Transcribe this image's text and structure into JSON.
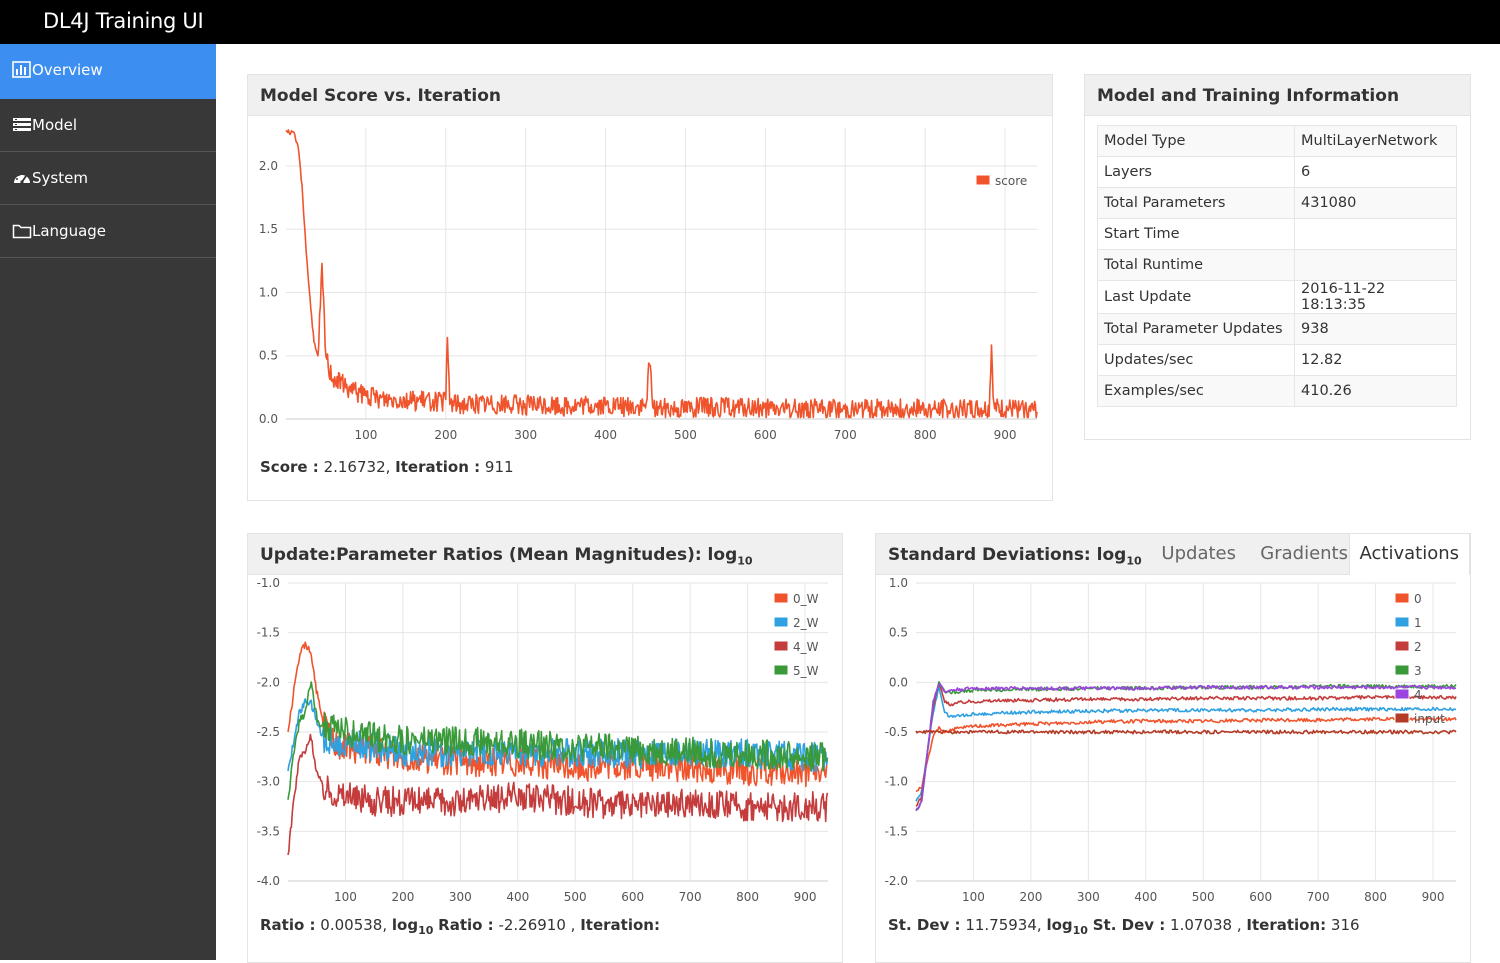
{
  "app": {
    "title": "DL4J Training UI"
  },
  "sidebar": {
    "items": [
      {
        "label": "Overview",
        "icon": "bar-chart-icon",
        "active": true
      },
      {
        "label": "Model",
        "icon": "list-icon",
        "active": false
      },
      {
        "label": "System",
        "icon": "dashboard-icon",
        "active": false
      },
      {
        "label": "Language",
        "icon": "folder-icon",
        "active": false
      }
    ]
  },
  "colors": {
    "accent": "#3c8ff0",
    "series": [
      "#f0542d",
      "#2fa0e0",
      "#c43c3c",
      "#3a9a3a",
      "#9b44e0",
      "#b43b26"
    ]
  },
  "score_panel": {
    "title": "Model Score vs. Iteration",
    "readout": {
      "score_label": "Score :",
      "score_value": "2.16732,",
      "iter_label": "Iteration :",
      "iter_value": "911"
    }
  },
  "info_panel": {
    "title": "Model and Training Information",
    "rows": [
      {
        "key": "Model Type",
        "value": "MultiLayerNetwork"
      },
      {
        "key": "Layers",
        "value": "6"
      },
      {
        "key": "Total Parameters",
        "value": "431080"
      },
      {
        "key": "Start Time",
        "value": ""
      },
      {
        "key": "Total Runtime",
        "value": ""
      },
      {
        "key": "Last Update",
        "value": "2016-11-22 18:13:35"
      },
      {
        "key": "Total Parameter Updates",
        "value": "938"
      },
      {
        "key": "Updates/sec",
        "value": "12.82"
      },
      {
        "key": "Examples/sec",
        "value": "410.26"
      }
    ]
  },
  "ratio_panel": {
    "title": "Update:Parameter Ratios (Mean Magnitudes): log",
    "title_sub": "10",
    "readout": {
      "ratio_label": "Ratio :",
      "ratio_value": "0.00538,",
      "log_label": "log",
      "log_sub": "10",
      "log_ratio_label": "Ratio :",
      "log_ratio_value": "-2.26910 ,",
      "iter_label": "Iteration:",
      "iter_value": ""
    }
  },
  "stdev_panel": {
    "title": "Standard Deviations: log",
    "title_sub": "10",
    "tabs": [
      {
        "label": "Updates",
        "active": false
      },
      {
        "label": "Gradients",
        "active": false
      },
      {
        "label": "Activations",
        "active": true
      }
    ],
    "readout": {
      "sd_label": "St. Dev :",
      "sd_value": "11.75934,",
      "log_label": "log",
      "log_sub": "10",
      "log_sd_label": "St. Dev :",
      "log_sd_value": "1.07038 ,",
      "iter_label": "Iteration:",
      "iter_value": "316"
    }
  },
  "chart_data": [
    {
      "type": "line",
      "title": "Model Score vs. Iteration",
      "xlim": [
        0,
        940
      ],
      "ylim": [
        0,
        2.3
      ],
      "xticks": [
        100,
        200,
        300,
        400,
        500,
        600,
        700,
        800,
        900
      ],
      "yticks": [
        0.0,
        0.5,
        1.0,
        1.5,
        2.0
      ],
      "ytick_labels": [
        "0.0",
        "0.5",
        "1.0",
        "1.5",
        "2.0"
      ],
      "grid": true,
      "legend_position": "top-right",
      "series": [
        {
          "name": "score",
          "color": "#f0542d",
          "x": [
            0,
            10,
            15,
            20,
            25,
            30,
            35,
            40,
            45,
            50,
            55,
            60,
            70,
            80,
            90,
            100,
            120,
            140,
            160,
            180,
            200,
            202,
            205,
            220,
            250,
            300,
            350,
            400,
            450,
            455,
            460,
            500,
            550,
            600,
            650,
            700,
            750,
            800,
            850,
            880,
            883,
            886,
            900,
            920,
            940
          ],
          "y": [
            2.28,
            2.25,
            2.15,
            1.85,
            1.35,
            0.95,
            0.6,
            0.48,
            1.18,
            0.5,
            0.38,
            0.33,
            0.28,
            0.24,
            0.2,
            0.18,
            0.16,
            0.16,
            0.14,
            0.14,
            0.13,
            0.65,
            0.13,
            0.12,
            0.12,
            0.11,
            0.1,
            0.1,
            0.09,
            0.45,
            0.09,
            0.09,
            0.09,
            0.08,
            0.08,
            0.08,
            0.08,
            0.08,
            0.08,
            0.08,
            0.58,
            0.08,
            0.08,
            0.07,
            0.07
          ]
        }
      ]
    },
    {
      "type": "line",
      "title": "Update:Parameter Ratios (Mean Magnitudes): log10",
      "xlim": [
        0,
        940
      ],
      "ylim": [
        -4.0,
        -1.0
      ],
      "xticks": [
        100,
        200,
        300,
        400,
        500,
        600,
        700,
        800,
        900
      ],
      "yticks": [
        -4.0,
        -3.5,
        -3.0,
        -2.5,
        -2.0,
        -1.5,
        -1.0
      ],
      "ytick_labels": [
        "-4.0",
        "-3.5",
        "-3.0",
        "-2.5",
        "-2.0",
        "-1.5",
        "-1.0"
      ],
      "grid": true,
      "legend_position": "top-right",
      "series": [
        {
          "name": "0_W",
          "color": "#f0542d",
          "x": [
            0,
            10,
            20,
            30,
            40,
            50,
            60,
            80,
            100,
            150,
            200,
            300,
            400,
            500,
            600,
            700,
            800,
            900,
            940
          ],
          "y": [
            -2.5,
            -2.1,
            -1.75,
            -1.6,
            -1.7,
            -2.1,
            -2.4,
            -2.6,
            -2.65,
            -2.7,
            -2.75,
            -2.8,
            -2.8,
            -2.85,
            -2.85,
            -2.85,
            -2.9,
            -2.9,
            -2.9
          ]
        },
        {
          "name": "2_W",
          "color": "#2fa0e0",
          "x": [
            0,
            10,
            20,
            30,
            40,
            50,
            60,
            80,
            100,
            150,
            200,
            300,
            400,
            500,
            600,
            700,
            800,
            900,
            940
          ],
          "y": [
            -2.9,
            -2.6,
            -2.3,
            -2.2,
            -2.2,
            -2.4,
            -2.55,
            -2.6,
            -2.62,
            -2.65,
            -2.7,
            -2.7,
            -2.7,
            -2.7,
            -2.72,
            -2.72,
            -2.72,
            -2.75,
            -2.75
          ]
        },
        {
          "name": "4_W",
          "color": "#c43c3c",
          "x": [
            0,
            10,
            20,
            30,
            40,
            50,
            60,
            80,
            100,
            150,
            200,
            300,
            400,
            500,
            600,
            700,
            800,
            900,
            940
          ],
          "y": [
            -3.75,
            -3.2,
            -2.75,
            -2.7,
            -2.55,
            -2.9,
            -3.05,
            -3.1,
            -3.15,
            -3.2,
            -3.2,
            -3.2,
            -3.15,
            -3.2,
            -3.25,
            -3.2,
            -3.25,
            -3.25,
            -3.25
          ]
        },
        {
          "name": "5_W",
          "color": "#3a9a3a",
          "x": [
            0,
            10,
            20,
            30,
            40,
            50,
            60,
            80,
            100,
            150,
            200,
            300,
            400,
            500,
            600,
            700,
            800,
            900,
            940
          ],
          "y": [
            -3.2,
            -2.7,
            -2.4,
            -2.3,
            -2.0,
            -2.35,
            -2.45,
            -2.45,
            -2.5,
            -2.55,
            -2.58,
            -2.6,
            -2.62,
            -2.65,
            -2.68,
            -2.7,
            -2.72,
            -2.75,
            -2.75
          ]
        }
      ]
    },
    {
      "type": "line",
      "title": "Standard Deviations: log10",
      "xlim": [
        0,
        940
      ],
      "ylim": [
        -2.0,
        1.0
      ],
      "xticks": [
        100,
        200,
        300,
        400,
        500,
        600,
        700,
        800,
        900
      ],
      "yticks": [
        -2.0,
        -1.5,
        -1.0,
        -0.5,
        0.0,
        0.5,
        1.0
      ],
      "ytick_labels": [
        "-2.0",
        "-1.5",
        "-1.0",
        "-0.5",
        "0.0",
        "0.5",
        "1.0"
      ],
      "grid": true,
      "legend_position": "top-right",
      "series": [
        {
          "name": "0",
          "color": "#f0542d",
          "x": [
            0,
            10,
            20,
            30,
            40,
            50,
            60,
            80,
            100,
            200,
            300,
            400,
            500,
            600,
            700,
            800,
            900,
            940
          ],
          "y": [
            -1.1,
            -1.05,
            -0.8,
            -0.55,
            -0.45,
            -0.5,
            -0.48,
            -0.46,
            -0.44,
            -0.42,
            -0.4,
            -0.39,
            -0.39,
            -0.38,
            -0.38,
            -0.37,
            -0.37,
            -0.37
          ]
        },
        {
          "name": "1",
          "color": "#2fa0e0",
          "x": [
            0,
            10,
            20,
            30,
            40,
            50,
            60,
            80,
            100,
            200,
            300,
            400,
            500,
            600,
            700,
            800,
            900,
            940
          ],
          "y": [
            -1.2,
            -1.1,
            -0.7,
            -0.3,
            -0.05,
            -0.3,
            -0.35,
            -0.33,
            -0.32,
            -0.3,
            -0.29,
            -0.28,
            -0.28,
            -0.28,
            -0.27,
            -0.27,
            -0.27,
            -0.27
          ]
        },
        {
          "name": "2",
          "color": "#c43c3c",
          "x": [
            0,
            10,
            20,
            30,
            40,
            50,
            60,
            80,
            100,
            200,
            300,
            400,
            500,
            600,
            700,
            800,
            900,
            940
          ],
          "y": [
            -1.25,
            -1.15,
            -0.7,
            -0.25,
            0.0,
            -0.2,
            -0.22,
            -0.2,
            -0.19,
            -0.18,
            -0.17,
            -0.17,
            -0.16,
            -0.16,
            -0.16,
            -0.15,
            -0.15,
            -0.15
          ]
        },
        {
          "name": "3",
          "color": "#3a9a3a",
          "x": [
            0,
            10,
            20,
            30,
            40,
            50,
            60,
            80,
            100,
            200,
            300,
            400,
            500,
            600,
            700,
            800,
            900,
            940
          ],
          "y": [
            -1.3,
            -1.2,
            -0.7,
            -0.2,
            0.0,
            -0.1,
            -0.1,
            -0.09,
            -0.08,
            -0.07,
            -0.06,
            -0.06,
            -0.05,
            -0.05,
            -0.04,
            -0.04,
            -0.04,
            -0.04
          ]
        },
        {
          "name": "4",
          "color": "#9b44e0",
          "x": [
            0,
            10,
            20,
            30,
            40,
            50,
            60,
            80,
            100,
            200,
            300,
            400,
            500,
            600,
            700,
            800,
            900,
            940
          ],
          "y": [
            -1.3,
            -1.2,
            -0.7,
            -0.2,
            0.0,
            -0.1,
            -0.08,
            -0.07,
            -0.06,
            -0.06,
            -0.06,
            -0.06,
            -0.05,
            -0.05,
            -0.05,
            -0.05,
            -0.05,
            -0.05
          ]
        },
        {
          "name": "input",
          "color": "#b43b26",
          "x": [
            0,
            20,
            40,
            60,
            100,
            200,
            300,
            400,
            500,
            600,
            700,
            800,
            900,
            940
          ],
          "y": [
            -0.5,
            -0.5,
            -0.5,
            -0.5,
            -0.5,
            -0.5,
            -0.5,
            -0.5,
            -0.5,
            -0.5,
            -0.5,
            -0.5,
            -0.5,
            -0.5
          ]
        }
      ]
    }
  ]
}
